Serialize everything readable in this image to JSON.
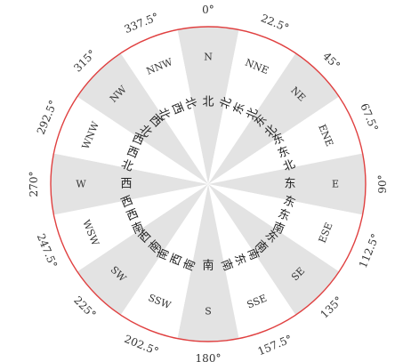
{
  "colors": {
    "ring": "#e04040",
    "shade": "#e3e3e3",
    "text": "#333333",
    "background": "#ffffff"
  },
  "sectors": [
    {
      "abbr": "N",
      "chinese": "北",
      "degree": "0°",
      "shaded": true
    },
    {
      "abbr": "NNE",
      "chinese": "北东北",
      "degree": "22.5°",
      "shaded": false
    },
    {
      "abbr": "NE",
      "chinese": "东北",
      "degree": "45°",
      "shaded": true
    },
    {
      "abbr": "ENE",
      "chinese": "东东北",
      "degree": "67.5°",
      "shaded": false
    },
    {
      "abbr": "E",
      "chinese": "东",
      "degree": "90°",
      "shaded": true
    },
    {
      "abbr": "ESE",
      "chinese": "东东南",
      "degree": "112.5°",
      "shaded": false
    },
    {
      "abbr": "SE",
      "chinese": "东南",
      "degree": "135°",
      "shaded": true
    },
    {
      "abbr": "SSE",
      "chinese": "南东南",
      "degree": "157.5°",
      "shaded": false
    },
    {
      "abbr": "S",
      "chinese": "南",
      "degree": "180°",
      "shaded": true
    },
    {
      "abbr": "SSW",
      "chinese": "南西南",
      "degree": "202.5°",
      "shaded": false
    },
    {
      "abbr": "SW",
      "chinese": "西南",
      "degree": "225°",
      "shaded": true
    },
    {
      "abbr": "WSW",
      "chinese": "西西南",
      "degree": "247.5°",
      "shaded": false
    },
    {
      "abbr": "W",
      "chinese": "西",
      "degree": "270°",
      "shaded": true
    },
    {
      "abbr": "WNW",
      "chinese": "西西北",
      "degree": "292.5°",
      "shaded": false
    },
    {
      "abbr": "NW",
      "chinese": "西北",
      "degree": "315°",
      "shaded": true
    },
    {
      "abbr": "NNW",
      "chinese": "北西北",
      "degree": "337.5°",
      "shaded": false
    }
  ]
}
